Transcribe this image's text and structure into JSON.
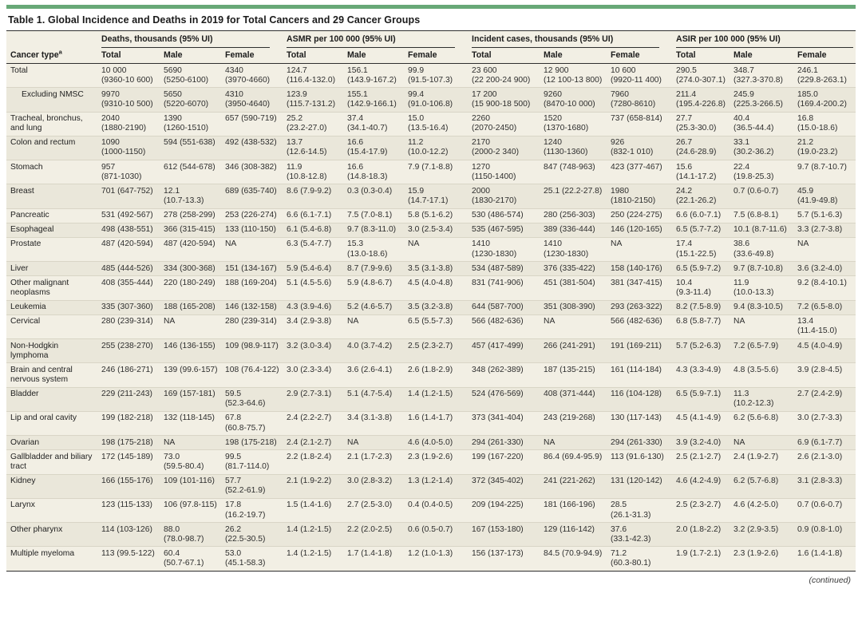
{
  "accent_color": "#68a877",
  "table": {
    "title": "Table 1. Global Incidence and Deaths in 2019 for Total Cancers and 29 Cancer Groups",
    "row_header": "Cancer type",
    "row_header_footnote": "a",
    "col_groups": [
      "Deaths, thousands (95% UI)",
      "ASMR per 100 000 (95% UI)",
      "Incident cases, thousands (95% UI)",
      "ASIR per 100 000 (95% UI)"
    ],
    "sub_headers": [
      "Total",
      "Male",
      "Female"
    ],
    "continued_note": "(continued)",
    "rows": [
      {
        "name": "Total",
        "indent": false,
        "cells": [
          "10 000 (9360-10 600)",
          "5690 (5250-6100)",
          "4340 (3970-4660)",
          "124.7 (116.4-132.0)",
          "156.1 (143.9-167.2)",
          "99.9 (91.5-107.3)",
          "23 600 (22 200-24 900)",
          "12 900 (12 100-13 800)",
          "10 600 (9920-11 400)",
          "290.5 (274.0-307.1)",
          "348.7 (327.3-370.8)",
          "246.1 (229.8-263.1)"
        ]
      },
      {
        "name": "Excluding NMSC",
        "indent": true,
        "cells": [
          "9970 (9310-10 500)",
          "5650 (5220-6070)",
          "4310 (3950-4640)",
          "123.9 (115.7-131.2)",
          "155.1 (142.9-166.1)",
          "99.4 (91.0-106.8)",
          "17 200 (15 900-18 500)",
          "9260 (8470-10 000)",
          "7960 (7280-8610)",
          "211.4 (195.4-226.8)",
          "245.9 (225.3-266.5)",
          "185.0 (169.4-200.2)"
        ]
      },
      {
        "name": "Tracheal, bronchus, and lung",
        "indent": false,
        "cells": [
          "2040 (1880-2190)",
          "1390 (1260-1510)",
          "657 (590-719)",
          "25.2 (23.2-27.0)",
          "37.4 (34.1-40.7)",
          "15.0 (13.5-16.4)",
          "2260 (2070-2450)",
          "1520 (1370-1680)",
          "737 (658-814)",
          "27.7 (25.3-30.0)",
          "40.4 (36.5-44.4)",
          "16.8 (15.0-18.6)"
        ]
      },
      {
        "name": "Colon and rectum",
        "indent": false,
        "cells": [
          "1090 (1000-1150)",
          "594 (551-638)",
          "492 (438-532)",
          "13.7 (12.6-14.5)",
          "16.6 (15.4-17.9)",
          "11.2 (10.0-12.2)",
          "2170 (2000-2 340)",
          "1240 (1130-1360)",
          "926 (832-1 010)",
          "26.7 (24.6-28.9)",
          "33.1 (30.2-36.2)",
          "21.2 (19.0-23.2)"
        ]
      },
      {
        "name": "Stomach",
        "indent": false,
        "cells": [
          "957 (871-1030)",
          "612 (544-678)",
          "346 (308-382)",
          "11.9 (10.8-12.8)",
          "16.6 (14.8-18.3)",
          "7.9 (7.1-8.8)",
          "1270 (1150-1400)",
          "847 (748-963)",
          "423 (377-467)",
          "15.6 (14.1-17.2)",
          "22.4 (19.8-25.3)",
          "9.7 (8.7-10.7)"
        ]
      },
      {
        "name": "Breast",
        "indent": false,
        "cells": [
          "701 (647-752)",
          "12.1 (10.7-13.3)",
          "689 (635-740)",
          "8.6 (7.9-9.2)",
          "0.3 (0.3-0.4)",
          "15.9 (14.7-17.1)",
          "2000 (1830-2170)",
          "25.1 (22.2-27.8)",
          "1980 (1810-2150)",
          "24.2 (22.1-26.2)",
          "0.7 (0.6-0.7)",
          "45.9 (41.9-49.8)"
        ]
      },
      {
        "name": "Pancreatic",
        "indent": false,
        "cells": [
          "531 (492-567)",
          "278 (258-299)",
          "253 (226-274)",
          "6.6 (6.1-7.1)",
          "7.5 (7.0-8.1)",
          "5.8 (5.1-6.2)",
          "530 (486-574)",
          "280 (256-303)",
          "250 (224-275)",
          "6.6 (6.0-7.1)",
          "7.5 (6.8-8.1)",
          "5.7 (5.1-6.3)"
        ]
      },
      {
        "name": "Esophageal",
        "indent": false,
        "cells": [
          "498 (438-551)",
          "366 (315-415)",
          "133 (110-150)",
          "6.1 (5.4-6.8)",
          "9.7 (8.3-11.0)",
          "3.0 (2.5-3.4)",
          "535 (467-595)",
          "389 (336-444)",
          "146 (120-165)",
          "6.5 (5.7-7.2)",
          "10.1 (8.7-11.6)",
          "3.3 (2.7-3.8)"
        ]
      },
      {
        "name": "Prostate",
        "indent": false,
        "cells": [
          "487 (420-594)",
          "487 (420-594)",
          "NA",
          "6.3 (5.4-7.7)",
          "15.3 (13.0-18.6)",
          "NA",
          "1410 (1230-1830)",
          "1410 (1230-1830)",
          "NA",
          "17.4 (15.1-22.5)",
          "38.6 (33.6-49.8)",
          "NA"
        ]
      },
      {
        "name": "Liver",
        "indent": false,
        "cells": [
          "485 (444-526)",
          "334 (300-368)",
          "151 (134-167)",
          "5.9 (5.4-6.4)",
          "8.7 (7.9-9.6)",
          "3.5 (3.1-3.8)",
          "534 (487-589)",
          "376 (335-422)",
          "158 (140-176)",
          "6.5 (5.9-7.2)",
          "9.7 (8.7-10.8)",
          "3.6 (3.2-4.0)"
        ]
      },
      {
        "name": "Other malignant neoplasms",
        "indent": false,
        "cells": [
          "408 (355-444)",
          "220 (180-249)",
          "188 (169-204)",
          "5.1 (4.5-5.6)",
          "5.9 (4.8-6.7)",
          "4.5 (4.0-4.8)",
          "831 (741-906)",
          "451 (381-504)",
          "381 (347-415)",
          "10.4 (9.3-11.4)",
          "11.9 (10.0-13.3)",
          "9.2 (8.4-10.1)"
        ]
      },
      {
        "name": "Leukemia",
        "indent": false,
        "cells": [
          "335 (307-360)",
          "188 (165-208)",
          "146 (132-158)",
          "4.3 (3.9-4.6)",
          "5.2 (4.6-5.7)",
          "3.5 (3.2-3.8)",
          "644 (587-700)",
          "351 (308-390)",
          "293 (263-322)",
          "8.2 (7.5-8.9)",
          "9.4 (8.3-10.5)",
          "7.2 (6.5-8.0)"
        ]
      },
      {
        "name": "Cervical",
        "indent": false,
        "cells": [
          "280 (239-314)",
          "NA",
          "280 (239-314)",
          "3.4 (2.9-3.8)",
          "NA",
          "6.5 (5.5-7.3)",
          "566 (482-636)",
          "NA",
          "566 (482-636)",
          "6.8 (5.8-7.7)",
          "NA",
          "13.4 (11.4-15.0)"
        ]
      },
      {
        "name": "Non-Hodgkin lymphoma",
        "indent": false,
        "cells": [
          "255 (238-270)",
          "146 (136-155)",
          "109 (98.9-117)",
          "3.2 (3.0-3.4)",
          "4.0 (3.7-4.2)",
          "2.5 (2.3-2.7)",
          "457 (417-499)",
          "266 (241-291)",
          "191 (169-211)",
          "5.7 (5.2-6.3)",
          "7.2 (6.5-7.9)",
          "4.5 (4.0-4.9)"
        ]
      },
      {
        "name": "Brain and central nervous system",
        "indent": false,
        "cells": [
          "246 (186-271)",
          "139 (99.6-157)",
          "108 (76.4-122)",
          "3.0 (2.3-3.4)",
          "3.6 (2.6-4.1)",
          "2.6 (1.8-2.9)",
          "348 (262-389)",
          "187 (135-215)",
          "161 (114-184)",
          "4.3 (3.3-4.9)",
          "4.8 (3.5-5.6)",
          "3.9 (2.8-4.5)"
        ]
      },
      {
        "name": "Bladder",
        "indent": false,
        "cells": [
          "229 (211-243)",
          "169 (157-181)",
          "59.5 (52.3-64.6)",
          "2.9 (2.7-3.1)",
          "5.1 (4.7-5.4)",
          "1.4 (1.2-1.5)",
          "524 (476-569)",
          "408 (371-444)",
          "116 (104-128)",
          "6.5 (5.9-7.1)",
          "11.3 (10.2-12.3)",
          "2.7 (2.4-2.9)"
        ]
      },
      {
        "name": "Lip and oral cavity",
        "indent": false,
        "cells": [
          "199 (182-218)",
          "132 (118-145)",
          "67.8 (60.8-75.7)",
          "2.4 (2.2-2.7)",
          "3.4 (3.1-3.8)",
          "1.6 (1.4-1.7)",
          "373 (341-404)",
          "243 (219-268)",
          "130 (117-143)",
          "4.5 (4.1-4.9)",
          "6.2 (5.6-6.8)",
          "3.0 (2.7-3.3)"
        ]
      },
      {
        "name": "Ovarian",
        "indent": false,
        "cells": [
          "198 (175-218)",
          "NA",
          "198 (175-218)",
          "2.4 (2.1-2.7)",
          "NA",
          "4.6 (4.0-5.0)",
          "294 (261-330)",
          "NA",
          "294 (261-330)",
          "3.9 (3.2-4.0)",
          "NA",
          "6.9 (6.1-7.7)"
        ]
      },
      {
        "name": "Gallbladder and biliary tract",
        "indent": false,
        "cells": [
          "172 (145-189)",
          "73.0 (59.5-80.4)",
          "99.5 (81.7-114.0)",
          "2.2 (1.8-2.4)",
          "2.1 (1.7-2.3)",
          "2.3 (1.9-2.6)",
          "199 (167-220)",
          "86.4 (69.4-95.9)",
          "113 (91.6-130)",
          "2.5 (2.1-2.7)",
          "2.4 (1.9-2.7)",
          "2.6 (2.1-3.0)"
        ]
      },
      {
        "name": "Kidney",
        "indent": false,
        "cells": [
          "166 (155-176)",
          "109 (101-116)",
          "57.7 (52.2-61.9)",
          "2.1 (1.9-2.2)",
          "3.0 (2.8-3.2)",
          "1.3 (1.2-1.4)",
          "372 (345-402)",
          "241 (221-262)",
          "131 (120-142)",
          "4.6 (4.2-4.9)",
          "6.2 (5.7-6.8)",
          "3.1 (2.8-3.3)"
        ]
      },
      {
        "name": "Larynx",
        "indent": false,
        "cells": [
          "123 (115-133)",
          "106 (97.8-115)",
          "17.8 (16.2-19.7)",
          "1.5 (1.4-1.6)",
          "2.7 (2.5-3.0)",
          "0.4 (0.4-0.5)",
          "209 (194-225)",
          "181 (166-196)",
          "28.5 (26.1-31.3)",
          "2.5 (2.3-2.7)",
          "4.6 (4.2-5.0)",
          "0.7 (0.6-0.7)"
        ]
      },
      {
        "name": "Other pharynx",
        "indent": false,
        "cells": [
          "114 (103-126)",
          "88.0 (78.0-98.7)",
          "26.2 (22.5-30.5)",
          "1.4 (1.2-1.5)",
          "2.2 (2.0-2.5)",
          "0.6 (0.5-0.7)",
          "167 (153-180)",
          "129 (116-142)",
          "37.6 (33.1-42.3)",
          "2.0 (1.8-2.2)",
          "3.2 (2.9-3.5)",
          "0.9 (0.8-1.0)"
        ]
      },
      {
        "name": "Multiple myeloma",
        "indent": false,
        "cells": [
          "113 (99.5-122)",
          "60.4 (50.7-67.1)",
          "53.0 (45.1-58.3)",
          "1.4 (1.2-1.5)",
          "1.7 (1.4-1.8)",
          "1.2 (1.0-1.3)",
          "156 (137-173)",
          "84.5 (70.9-94.9)",
          "71.2 (60.3-80.1)",
          "1.9 (1.7-2.1)",
          "2.3 (1.9-2.6)",
          "1.6 (1.4-1.8)"
        ]
      }
    ]
  }
}
